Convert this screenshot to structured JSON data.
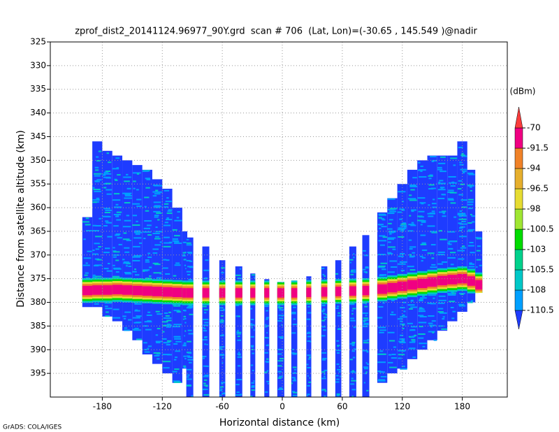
{
  "chart_data": {
    "type": "heatmap",
    "title": "zprof_dist2_20141124.96977_90Y.grd  scan # 706  (Lat, Lon)=(-30.65 , 145.549 )@nadir",
    "xlabel": "Horizontal distance (km)",
    "ylabel": "Distance from satellite altitude (km)",
    "credit": "GrADS: COLA/IGES",
    "xlim": [
      -232,
      225
    ],
    "ylim": [
      400,
      325
    ],
    "xticks": [
      -180,
      -120,
      -60,
      0,
      60,
      120,
      180
    ],
    "yticks": [
      325,
      330,
      335,
      340,
      345,
      350,
      355,
      360,
      365,
      370,
      375,
      380,
      385,
      390,
      395
    ],
    "grid": true,
    "colorbar": {
      "label": "(dBm)",
      "levels": [
        -110.5,
        -108,
        -105.5,
        -103,
        -100.5,
        -98,
        -96.5,
        -94,
        -91.5,
        -70
      ],
      "colors": [
        "#1e3cff",
        "#00a0ff",
        "#00c8c8",
        "#00d28c",
        "#00dc00",
        "#a0e632",
        "#e6dc32",
        "#e6af2d",
        "#f08228",
        "#f00082",
        "#fa3c3c"
      ]
    },
    "columns": [
      {
        "x0": -200,
        "x1": -190,
        "top": 362,
        "bottom": 381,
        "surface": 377.5
      },
      {
        "x0": -190,
        "x1": -180,
        "top": 346,
        "bottom": 381,
        "surface": 377.4
      },
      {
        "x0": -180,
        "x1": -170,
        "top": 348,
        "bottom": 383,
        "surface": 377.4
      },
      {
        "x0": -170,
        "x1": -160,
        "top": 349,
        "bottom": 384,
        "surface": 377.3
      },
      {
        "x0": -160,
        "x1": -150,
        "top": 350,
        "bottom": 386,
        "surface": 377.4
      },
      {
        "x0": -150,
        "x1": -140,
        "top": 351,
        "bottom": 388,
        "surface": 377.5
      },
      {
        "x0": -140,
        "x1": -130,
        "top": 352,
        "bottom": 391,
        "surface": 377.6
      },
      {
        "x0": -130,
        "x1": -120,
        "top": 354,
        "bottom": 393,
        "surface": 377.7
      },
      {
        "x0": -120,
        "x1": -110,
        "top": 356,
        "bottom": 395,
        "surface": 377.8
      },
      {
        "x0": -110,
        "x1": -100,
        "top": 360,
        "bottom": 397,
        "surface": 377.9
      },
      {
        "x0": -100,
        "x1": -95,
        "top": 365,
        "bottom": 394,
        "surface": 378
      },
      {
        "x0": -96,
        "x1": -89,
        "top": 366.3,
        "bottom": 400,
        "surface": 378
      },
      {
        "x0": -80,
        "x1": -73,
        "top": 368.2,
        "bottom": 400,
        "surface": 378
      },
      {
        "x0": -63,
        "x1": -57,
        "top": 371.1,
        "bottom": 400,
        "surface": 378
      },
      {
        "x0": -47,
        "x1": -40,
        "top": 372.4,
        "bottom": 400,
        "surface": 378
      },
      {
        "x0": -32,
        "x1": -27,
        "top": 373.9,
        "bottom": 400,
        "surface": 378
      },
      {
        "x0": -18,
        "x1": -13,
        "top": 375.1,
        "bottom": 400,
        "surface": 378
      },
      {
        "x0": -5,
        "x1": 2,
        "top": 375.7,
        "bottom": 400,
        "surface": 378
      },
      {
        "x0": 9,
        "x1": 15,
        "top": 375.4,
        "bottom": 400,
        "surface": 378
      },
      {
        "x0": 24,
        "x1": 29,
        "top": 374.5,
        "bottom": 400,
        "surface": 377.9
      },
      {
        "x0": 39,
        "x1": 45,
        "top": 372.4,
        "bottom": 400,
        "surface": 377.8
      },
      {
        "x0": 53,
        "x1": 59,
        "top": 371.1,
        "bottom": 400,
        "surface": 377.7
      },
      {
        "x0": 67,
        "x1": 74,
        "top": 368.2,
        "bottom": 400,
        "surface": 377.6
      },
      {
        "x0": 80,
        "x1": 87,
        "top": 365.8,
        "bottom": 400,
        "surface": 377.5
      },
      {
        "x0": 95,
        "x1": 105,
        "top": 361,
        "bottom": 397,
        "surface": 377.2
      },
      {
        "x0": 105,
        "x1": 115,
        "top": 358,
        "bottom": 395,
        "surface": 376.9
      },
      {
        "x0": 115,
        "x1": 125,
        "top": 355,
        "bottom": 394,
        "surface": 376.6
      },
      {
        "x0": 125,
        "x1": 135,
        "top": 352,
        "bottom": 392,
        "surface": 376.3
      },
      {
        "x0": 135,
        "x1": 145,
        "top": 350,
        "bottom": 390,
        "surface": 376
      },
      {
        "x0": 145,
        "x1": 155,
        "top": 349,
        "bottom": 388,
        "surface": 375.7
      },
      {
        "x0": 155,
        "x1": 165,
        "top": 349,
        "bottom": 386,
        "surface": 375.4
      },
      {
        "x0": 165,
        "x1": 175,
        "top": 349,
        "bottom": 384,
        "surface": 375.2
      },
      {
        "x0": 175,
        "x1": 185,
        "top": 346,
        "bottom": 382,
        "surface": 375
      },
      {
        "x0": 185,
        "x1": 193,
        "top": 352,
        "bottom": 380,
        "surface": 375.5
      },
      {
        "x0": 193,
        "x1": 200,
        "top": 365,
        "bottom": 378,
        "surface": 376.3
      }
    ]
  }
}
